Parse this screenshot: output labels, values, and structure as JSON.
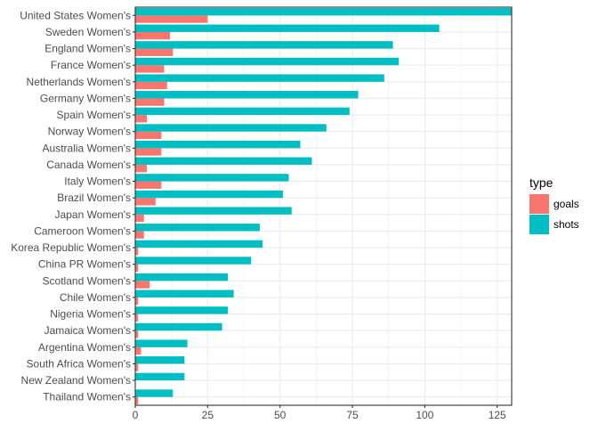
{
  "chart_data": {
    "type": "bar",
    "orientation": "horizontal",
    "grouped": true,
    "title": "",
    "xlabel": "",
    "ylabel": "",
    "xlim": [
      0,
      130
    ],
    "x_ticks": [
      0,
      25,
      50,
      75,
      100,
      125
    ],
    "grid": true,
    "legend": {
      "title": "type",
      "placement": "right"
    },
    "categories": [
      "United States Women's",
      "Sweden Women's",
      "England Women's",
      "France Women's",
      "Netherlands Women's",
      "Germany Women's",
      "Spain Women's",
      "Norway Women's",
      "Australia Women's",
      "Canada Women's",
      "Italy Women's",
      "Brazil Women's",
      "Japan Women's",
      "Cameroon Women's",
      "Korea Republic Women's",
      "China PR Women's",
      "Scotland Women's",
      "Chile Women's",
      "Nigeria Women's",
      "Jamaica Women's",
      "Argentina Women's",
      "South Africa Women's",
      "New Zealand Women's",
      "Thailand Women's"
    ],
    "series": [
      {
        "name": "goals",
        "color": "#F8766D",
        "values": [
          25,
          12,
          13,
          10,
          11,
          10,
          4,
          9,
          9,
          4,
          9,
          7,
          3,
          3,
          1,
          1,
          5,
          1,
          1,
          1,
          2,
          1,
          0,
          1
        ]
      },
      {
        "name": "shots",
        "color": "#00BFC4",
        "values": [
          131,
          105,
          89,
          91,
          86,
          77,
          74,
          66,
          57,
          61,
          53,
          51,
          54,
          43,
          44,
          40,
          32,
          34,
          32,
          30,
          18,
          17,
          17,
          13
        ]
      }
    ]
  }
}
